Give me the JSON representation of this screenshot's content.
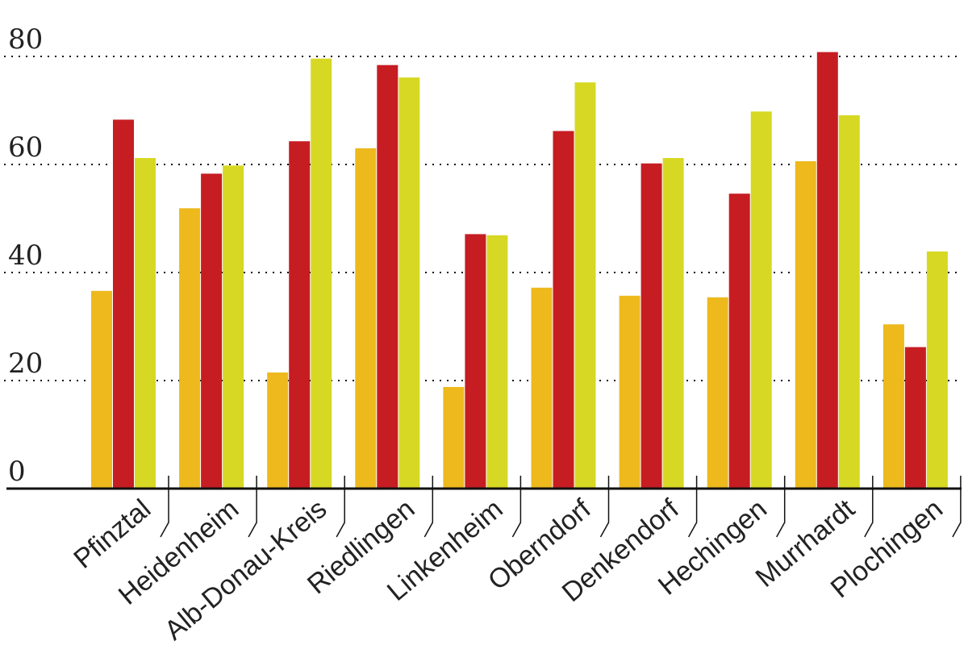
{
  "chart_data": {
    "type": "bar",
    "title": "",
    "xlabel": "",
    "ylabel": "",
    "ylim": [
      0,
      80
    ],
    "y_ticks": [
      "0",
      "20",
      "40",
      "60",
      "80"
    ],
    "grid": true,
    "categories": [
      "Pfinztal",
      "Heidenheim",
      "Alb-Donau-Kreis",
      "Riedlingen",
      "Linkenheim",
      "Oberndorf",
      "Denkendorf",
      "Hechingen",
      "Murrhardt",
      "Plochingen"
    ],
    "series": [
      {
        "color": "#EDB91C",
        "values": [
          36.6,
          51.9,
          21.5,
          63.0,
          18.8,
          37.2,
          35.7,
          35.4,
          60.6,
          30.4
        ]
      },
      {
        "color": "#C61D23",
        "values": [
          68.3,
          58.3,
          64.3,
          78.4,
          47.1,
          66.2,
          60.2,
          54.6,
          80.8,
          26.2
        ]
      },
      {
        "color": "#D7D823",
        "values": [
          61.2,
          59.8,
          79.6,
          76.1,
          46.9,
          75.2,
          61.2,
          69.8,
          69.1,
          43.9
        ]
      }
    ]
  }
}
